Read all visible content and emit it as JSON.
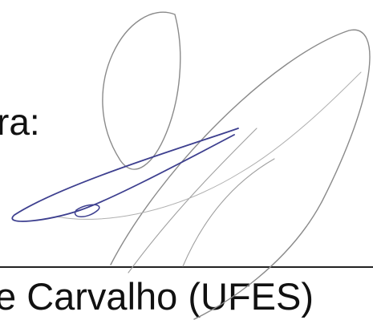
{
  "document": {
    "label_fragment": "ra:",
    "name_fragment": "e Carvalho (UFES)"
  }
}
